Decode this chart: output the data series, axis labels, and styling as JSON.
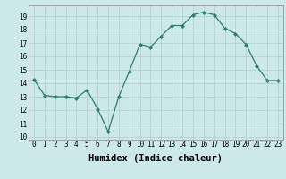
{
  "x": [
    0,
    1,
    2,
    3,
    4,
    5,
    6,
    7,
    8,
    9,
    10,
    11,
    12,
    13,
    14,
    15,
    16,
    17,
    18,
    19,
    20,
    21,
    22,
    23
  ],
  "y": [
    14.3,
    13.1,
    13.0,
    13.0,
    12.9,
    13.5,
    12.1,
    10.4,
    13.0,
    14.9,
    16.9,
    16.7,
    17.5,
    18.3,
    18.3,
    19.1,
    19.3,
    19.1,
    18.1,
    17.7,
    16.9,
    15.3,
    14.2,
    14.2
  ],
  "title": "",
  "xlabel": "Humidex (Indice chaleur)",
  "ylabel": "",
  "xlim": [
    -0.5,
    23.5
  ],
  "ylim": [
    9.8,
    19.8
  ],
  "yticks": [
    10,
    11,
    12,
    13,
    14,
    15,
    16,
    17,
    18,
    19
  ],
  "xticks": [
    0,
    1,
    2,
    3,
    4,
    5,
    6,
    7,
    8,
    9,
    10,
    11,
    12,
    13,
    14,
    15,
    16,
    17,
    18,
    19,
    20,
    21,
    22,
    23
  ],
  "line_color": "#2e7d6e",
  "marker": "D",
  "marker_size": 2.0,
  "bg_color": "#cce8e8",
  "grid_color": "#aacece",
  "tick_fontsize": 5.5,
  "xlabel_fontsize": 7.5,
  "linewidth": 0.9
}
